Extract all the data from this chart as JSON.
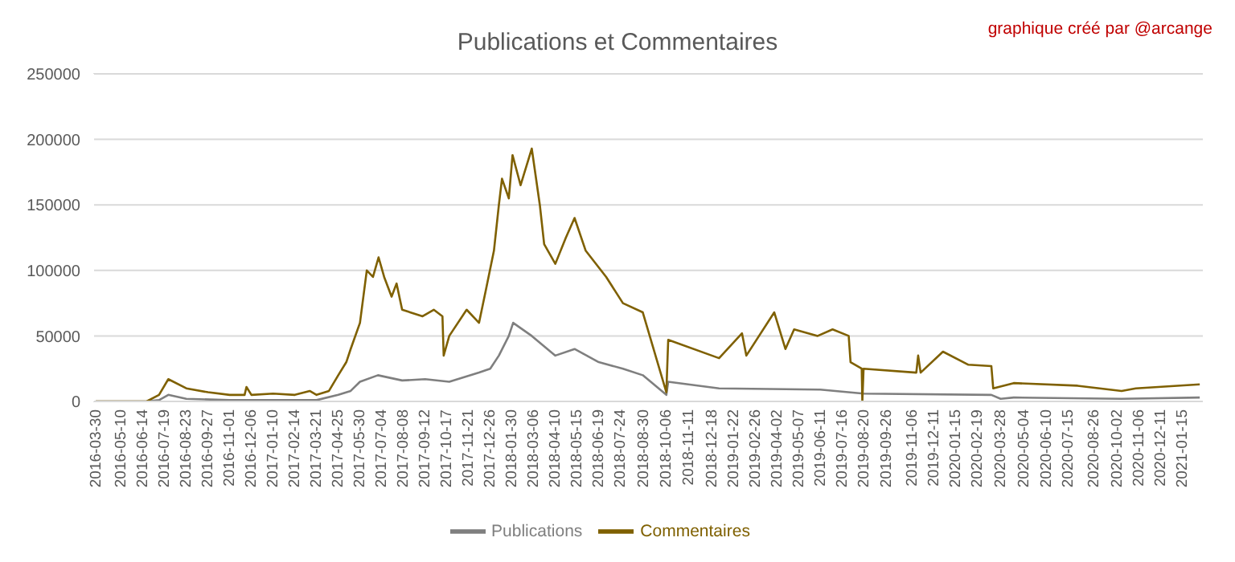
{
  "chart_data": {
    "type": "line",
    "title": "Publications et Commentaires",
    "annotations": [
      "graphique créé par @arcange"
    ],
    "xlim": [
      "2016-03-26",
      "2021-02-17"
    ],
    "xticks": [
      "2016-03-30",
      "2016-05-10",
      "2016-06-14",
      "2016-07-19",
      "2016-08-23",
      "2016-09-27",
      "2016-11-01",
      "2016-12-06",
      "2017-01-10",
      "2017-02-14",
      "2017-03-21",
      "2017-04-25",
      "2017-05-30",
      "2017-07-04",
      "2017-08-08",
      "2017-09-12",
      "2017-10-17",
      "2017-11-21",
      "2017-12-26",
      "2018-01-30",
      "2018-03-06",
      "2018-04-10",
      "2018-05-15",
      "2018-06-19",
      "2018-07-24",
      "2018-08-30",
      "2018-10-06",
      "2018-11-11",
      "2018-12-18",
      "2019-01-22",
      "2019-02-26",
      "2019-04-02",
      "2019-05-07",
      "2019-06-11",
      "2019-07-16",
      "2019-08-20",
      "2019-09-26",
      "2019-11-06",
      "2019-12-11",
      "2020-01-15",
      "2020-02-19",
      "2020-03-28",
      "2020-05-04",
      "2020-06-10",
      "2020-07-15",
      "2020-08-26",
      "2020-10-02",
      "2020-11-06",
      "2020-12-11",
      "2021-01-15"
    ],
    "ylim": [
      0,
      250000
    ],
    "yticks": [
      0,
      50000,
      100000,
      150000,
      200000,
      250000
    ],
    "grid": "y",
    "legend": "bottom",
    "marker": "none",
    "line_style": "solid",
    "series": [
      {
        "name": "Publications",
        "color": "#7f7f7f",
        "x": [
          "2016-03-30",
          "2016-06-20",
          "2016-07-10",
          "2016-07-25",
          "2016-08-23",
          "2016-11-01",
          "2017-03-21",
          "2017-04-25",
          "2017-05-15",
          "2017-05-30",
          "2017-06-28",
          "2017-08-06",
          "2017-09-12",
          "2017-10-21",
          "2017-12-08",
          "2017-12-26",
          "2018-01-09",
          "2018-01-25",
          "2018-02-01",
          "2018-03-03",
          "2018-04-10",
          "2018-05-11",
          "2018-06-19",
          "2018-07-28",
          "2018-08-29",
          "2018-10-06",
          "2018-10-09",
          "2018-12-30",
          "2019-06-11",
          "2019-08-20",
          "2020-03-13",
          "2020-03-28",
          "2020-04-18",
          "2020-10-09",
          "2021-02-12"
        ],
        "values": [
          0,
          0,
          1000,
          5000,
          2000,
          1000,
          1000,
          5000,
          8000,
          15000,
          20000,
          16000,
          17000,
          15000,
          22000,
          25000,
          35000,
          50000,
          60000,
          50000,
          35000,
          40000,
          30000,
          25000,
          20000,
          5000,
          15000,
          10000,
          9000,
          6000,
          5000,
          2000,
          3000,
          2000,
          3000
        ]
      },
      {
        "name": "Commentaires",
        "color": "#7f6000",
        "x": [
          "2016-03-30",
          "2016-06-20",
          "2016-07-10",
          "2016-07-25",
          "2016-08-23",
          "2016-09-27",
          "2016-11-01",
          "2016-11-25",
          "2016-11-28",
          "2016-12-06",
          "2017-01-10",
          "2017-02-14",
          "2017-03-10",
          "2017-03-21",
          "2017-04-10",
          "2017-04-25",
          "2017-05-08",
          "2017-05-15",
          "2017-05-30",
          "2017-06-10",
          "2017-06-20",
          "2017-06-29",
          "2017-07-08",
          "2017-07-20",
          "2017-07-28",
          "2017-08-06",
          "2017-09-08",
          "2017-09-26",
          "2017-10-10",
          "2017-10-12",
          "2017-10-21",
          "2017-11-18",
          "2017-12-08",
          "2017-12-19",
          "2018-01-01",
          "2018-01-09",
          "2018-01-14",
          "2018-01-25",
          "2018-01-31",
          "2018-02-13",
          "2018-03-03",
          "2018-03-16",
          "2018-03-23",
          "2018-04-10",
          "2018-04-27",
          "2018-05-11",
          "2018-05-29",
          "2018-07-01",
          "2018-07-28",
          "2018-08-29",
          "2018-10-06",
          "2018-10-09",
          "2018-12-30",
          "2019-02-05",
          "2019-02-12",
          "2019-03-29",
          "2019-04-16",
          "2019-04-30",
          "2019-06-07",
          "2019-07-01",
          "2019-07-27",
          "2019-07-30",
          "2019-08-17",
          "2019-08-18",
          "2019-08-20",
          "2019-11-13",
          "2019-11-16",
          "2019-11-20",
          "2019-12-26",
          "2020-02-05",
          "2020-03-13",
          "2020-03-16",
          "2020-04-18",
          "2020-07-30",
          "2020-10-09",
          "2020-11-01",
          "2021-02-12"
        ],
        "values": [
          0,
          0,
          5000,
          17000,
          10000,
          7000,
          5000,
          5000,
          11000,
          5000,
          6000,
          5000,
          8000,
          5000,
          8000,
          20000,
          30000,
          40000,
          60000,
          100000,
          95000,
          110000,
          95000,
          80000,
          90000,
          70000,
          65000,
          70000,
          65000,
          35000,
          50000,
          70000,
          60000,
          85000,
          115000,
          150000,
          170000,
          155000,
          188000,
          165000,
          193000,
          150000,
          120000,
          105000,
          125000,
          140000,
          115000,
          95000,
          75000,
          68000,
          7000,
          47000,
          33000,
          52000,
          35000,
          68000,
          40000,
          55000,
          50000,
          55000,
          50000,
          30000,
          25000,
          0,
          25000,
          22000,
          35000,
          22000,
          38000,
          28000,
          27000,
          10000,
          14000,
          12000,
          8000,
          10000,
          13000
        ]
      }
    ]
  }
}
